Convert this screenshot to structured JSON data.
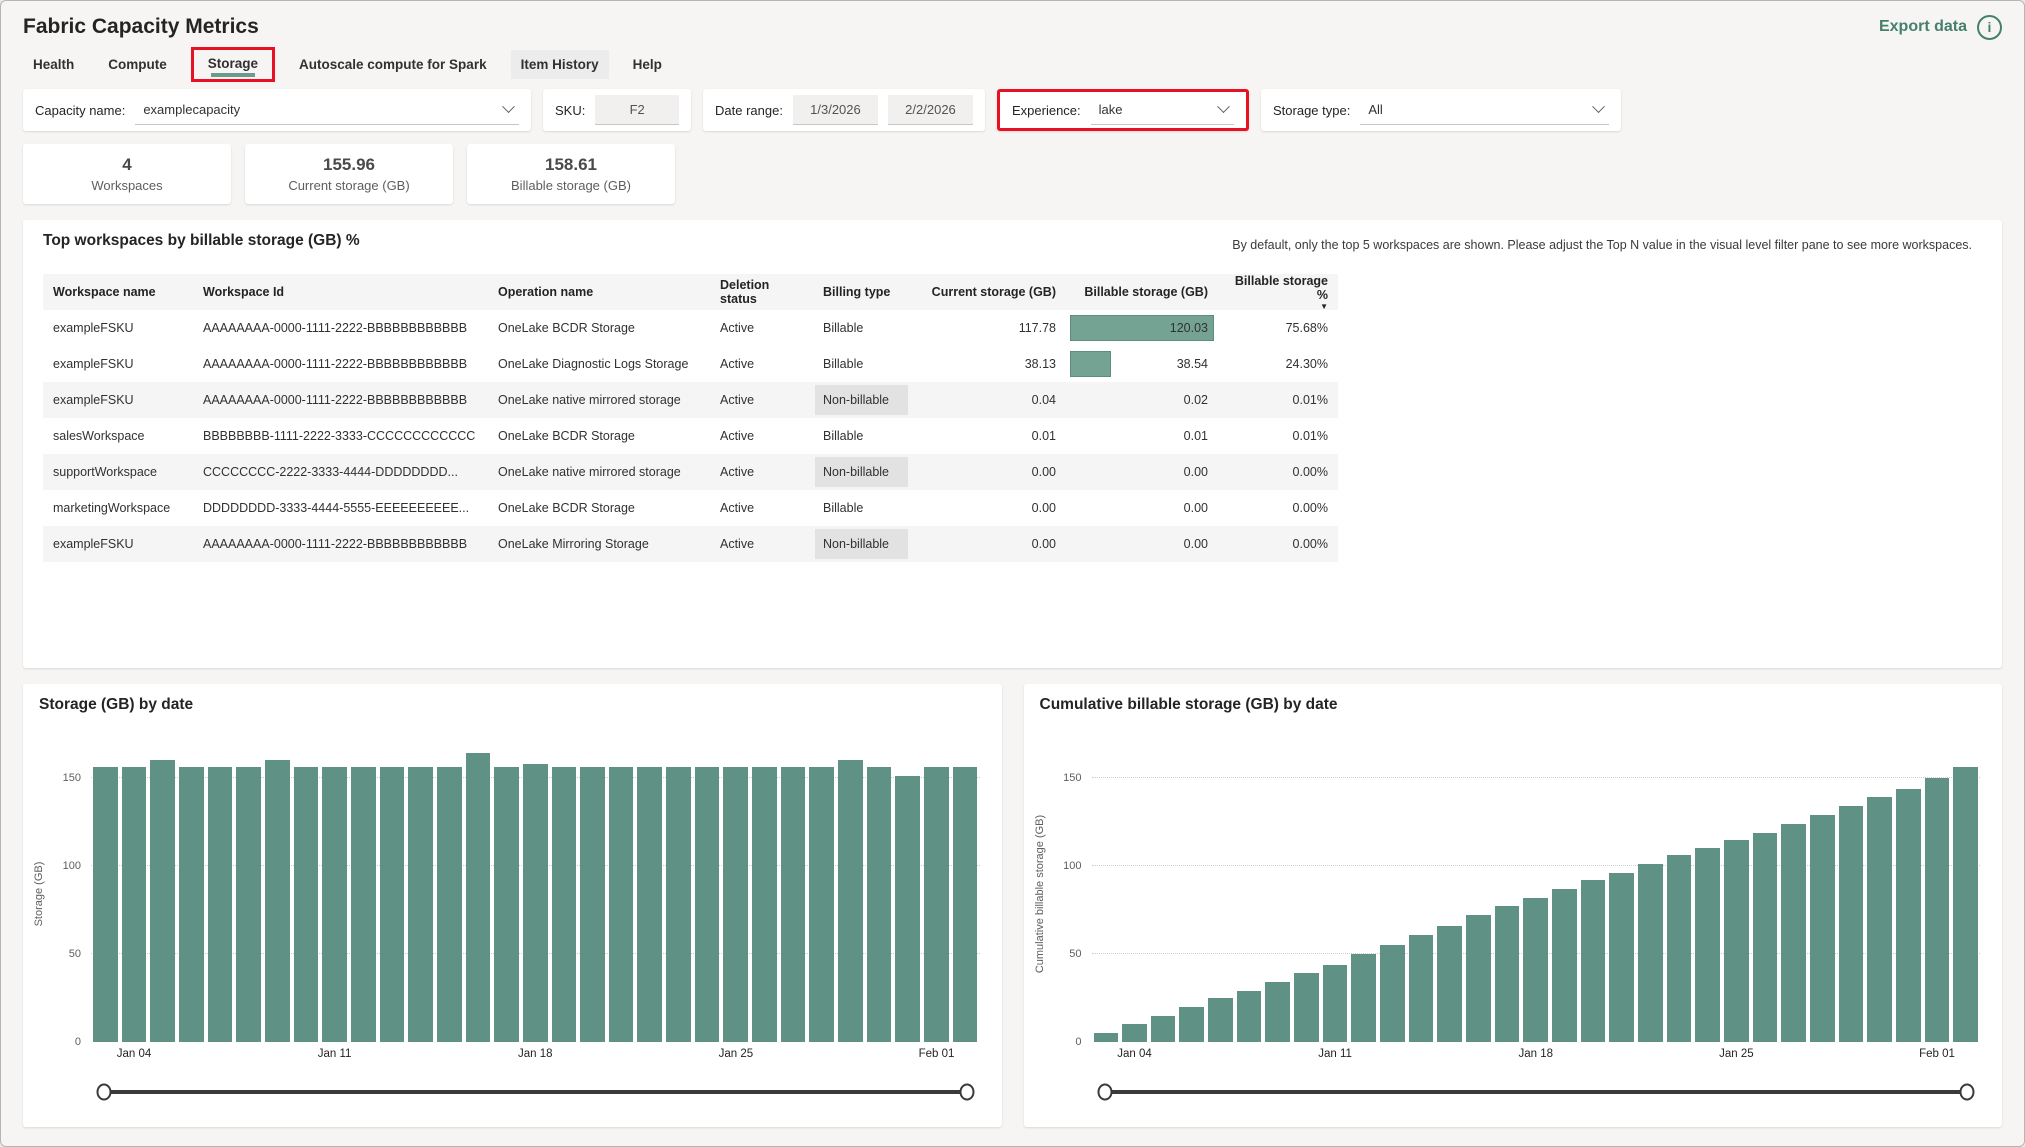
{
  "header": {
    "title": "Fabric Capacity Metrics",
    "export_label": "Export data",
    "info_label": "i"
  },
  "tabs": [
    {
      "label": "Health"
    },
    {
      "label": "Compute"
    },
    {
      "label": "Storage",
      "active": true
    },
    {
      "label": "Autoscale compute for Spark"
    },
    {
      "label": "Item History",
      "hovered": true
    },
    {
      "label": "Help"
    }
  ],
  "filters": {
    "capacity": {
      "label": "Capacity name:",
      "value": "examplecapacity"
    },
    "sku": {
      "label": "SKU:",
      "value": "F2"
    },
    "date_range": {
      "label": "Date range:",
      "start": "1/3/2026",
      "end": "2/2/2026"
    },
    "experience": {
      "label": "Experience:",
      "value": "lake",
      "highlighted": true
    },
    "storage_type": {
      "label": "Storage type:",
      "value": "All"
    }
  },
  "kpis": [
    {
      "value": "4",
      "label": "Workspaces"
    },
    {
      "value": "155.96",
      "label": "Current storage (GB)"
    },
    {
      "value": "158.61",
      "label": "Billable storage (GB)"
    }
  ],
  "table": {
    "title": "Top workspaces by billable storage (GB) %",
    "note": "By default, only the top 5 workspaces are shown. Please adjust the Top N value in the visual level filter pane to see more workspaces.",
    "columns": [
      "Workspace name",
      "Workspace Id",
      "Operation name",
      "Deletion status",
      "Billing type",
      "Current storage (GB)",
      "Billable storage (GB)",
      "Billable storage %"
    ],
    "sort_column": "Billable storage %",
    "sort_direction": "descending",
    "rows": [
      {
        "workspace_name": "exampleFSKU",
        "workspace_id": "AAAAAAAA-0000-1111-2222-BBBBBBBBBBBB",
        "operation_name": "OneLake BCDR Storage",
        "deletion_status": "Active",
        "billing_type": "Billable",
        "current_storage": "117.78",
        "billable_storage": "120.03",
        "bar_pct": 100,
        "billable_pct": "75.68%"
      },
      {
        "workspace_name": "exampleFSKU",
        "workspace_id": "AAAAAAAA-0000-1111-2222-BBBBBBBBBBBB",
        "operation_name": "OneLake Diagnostic Logs Storage",
        "deletion_status": "Active",
        "billing_type": "Billable",
        "current_storage": "38.13",
        "billable_storage": "38.54",
        "bar_pct": 32,
        "billable_pct": "24.30%"
      },
      {
        "workspace_name": "exampleFSKU",
        "workspace_id": "AAAAAAAA-0000-1111-2222-BBBBBBBBBBBB",
        "operation_name": "OneLake native mirrored storage",
        "deletion_status": "Active",
        "billing_type": "Non-billable",
        "current_storage": "0.04",
        "billable_storage": "0.02",
        "bar_pct": 0,
        "billable_pct": "0.01%"
      },
      {
        "workspace_name": "salesWorkspace",
        "workspace_id": "BBBBBBBB-1111-2222-3333-CCCCCCCCCCCC",
        "operation_name": "OneLake BCDR Storage",
        "deletion_status": "Active",
        "billing_type": "Billable",
        "current_storage": "0.01",
        "billable_storage": "0.01",
        "bar_pct": 0,
        "billable_pct": "0.01%"
      },
      {
        "workspace_name": "supportWorkspace",
        "workspace_id": "CCCCCCCC-2222-3333-4444-DDDDDDDD...",
        "operation_name": "OneLake native mirrored storage",
        "deletion_status": "Active",
        "billing_type": "Non-billable",
        "current_storage": "0.00",
        "billable_storage": "0.00",
        "bar_pct": 0,
        "billable_pct": "0.00%"
      },
      {
        "workspace_name": "marketingWorkspace",
        "workspace_id": "DDDDDDDD-3333-4444-5555-EEEEEEEEEE...",
        "operation_name": "OneLake BCDR Storage",
        "deletion_status": "Active",
        "billing_type": "Billable",
        "current_storage": "0.00",
        "billable_storage": "0.00",
        "bar_pct": 0,
        "billable_pct": "0.00%"
      },
      {
        "workspace_name": "exampleFSKU",
        "workspace_id": "AAAAAAAA-0000-1111-2222-BBBBBBBBBBBB",
        "operation_name": "OneLake Mirroring Storage",
        "deletion_status": "Active",
        "billing_type": "Non-billable",
        "current_storage": "0.00",
        "billable_storage": "0.00",
        "bar_pct": 0,
        "billable_pct": "0.00%"
      }
    ]
  },
  "chart_data": [
    {
      "type": "bar",
      "title": "Storage (GB) by date",
      "xlabel": "",
      "ylabel": "Storage (GB)",
      "ylim": [
        0,
        175
      ],
      "yticks": [
        0,
        50,
        100,
        150
      ],
      "grid": "dotted horizontal",
      "bar_color": "#5f9184",
      "x_tick_labels": [
        "Jan 04",
        "Jan 11",
        "Jan 18",
        "Jan 25",
        "Feb 01"
      ],
      "x_tick_bar_index": [
        1,
        8,
        15,
        22,
        29
      ],
      "values": [
        156,
        156,
        160,
        156,
        156,
        156,
        160,
        156,
        156,
        156,
        156,
        156,
        156,
        164,
        156,
        158,
        156,
        156,
        156,
        156,
        156,
        156,
        156,
        156,
        156,
        156,
        160,
        156,
        151,
        156,
        156
      ]
    },
    {
      "type": "bar",
      "title": "Cumulative billable storage (GB) by date",
      "xlabel": "",
      "ylabel": "Cumulative billable storage (GB)",
      "ylim": [
        0,
        175
      ],
      "yticks": [
        0,
        50,
        100,
        150
      ],
      "grid": "dotted horizontal",
      "bar_color": "#5f9184",
      "x_tick_labels": [
        "Jan 04",
        "Jan 11",
        "Jan 18",
        "Jan 25",
        "Feb 01"
      ],
      "x_tick_bar_index": [
        1,
        8,
        15,
        22,
        29
      ],
      "values": [
        5,
        10,
        15,
        20,
        25,
        29,
        34,
        39,
        44,
        50,
        55,
        61,
        66,
        72,
        77,
        82,
        87,
        92,
        96,
        101,
        106,
        110,
        115,
        119,
        124,
        129,
        134,
        139,
        144,
        150,
        156
      ]
    }
  ]
}
